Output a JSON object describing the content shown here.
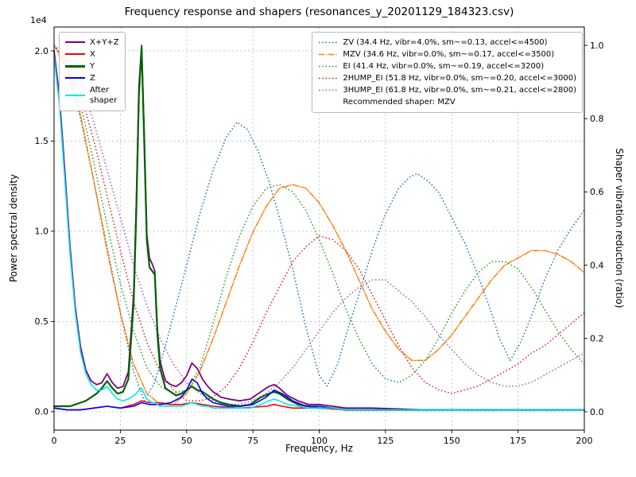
{
  "chart_data": {
    "type": "line",
    "title": "Frequency response and shapers (resonances_y_20201129_184323.csv)",
    "xlabel": "Frequency, Hz",
    "ylabel_left": "Power spectral density",
    "ylabel_right": "Shaper vibration reduction (ratio)",
    "offset_text": "1e4",
    "grid": true,
    "x_range": [
      0,
      200
    ],
    "y_left_range": [
      -0.102,
      2.132
    ],
    "y_right_range": [
      -0.05,
      1.05
    ],
    "x_ticks": {
      "values": [
        0,
        25,
        50,
        75,
        100,
        125,
        150,
        175,
        200
      ],
      "labels": [
        "0",
        "25",
        "50",
        "75",
        "100",
        "125",
        "150",
        "175",
        "200"
      ]
    },
    "y_left_ticks": {
      "values": [
        0,
        0.5,
        1.0,
        1.5,
        2.0
      ],
      "labels": [
        "0.0",
        "0.5",
        "1.0",
        "1.5",
        "2.0"
      ]
    },
    "y_right_ticks": {
      "values": [
        0,
        0.2,
        0.4,
        0.6,
        0.8,
        1.0
      ],
      "labels": [
        "0.0",
        "0.2",
        "0.4",
        "0.6",
        "0.8",
        "1.0"
      ]
    },
    "psd_units": "1e4",
    "psd_series": [
      {
        "name": "sum",
        "label": "X+Y+Z",
        "color": "#800080",
        "style": "solid",
        "width": 1.8,
        "x": [
          0,
          2,
          4,
          6,
          8,
          10,
          12,
          14,
          16,
          18,
          20,
          22,
          24,
          26,
          28,
          30,
          31,
          32,
          33,
          34,
          35,
          36,
          37,
          38,
          39,
          40,
          42,
          44,
          46,
          48,
          50,
          52,
          54,
          56,
          58,
          60,
          63,
          66,
          70,
          74,
          78,
          81,
          83,
          85,
          88,
          92,
          96,
          100,
          105,
          110,
          120,
          140,
          160,
          180,
          200
        ],
        "y": [
          2.0,
          1.75,
          1.35,
          0.92,
          0.58,
          0.36,
          0.23,
          0.17,
          0.15,
          0.16,
          0.21,
          0.16,
          0.13,
          0.14,
          0.22,
          0.65,
          1.15,
          1.8,
          2.03,
          1.55,
          0.98,
          0.85,
          0.82,
          0.78,
          0.45,
          0.28,
          0.17,
          0.15,
          0.14,
          0.16,
          0.2,
          0.27,
          0.24,
          0.18,
          0.14,
          0.11,
          0.08,
          0.07,
          0.06,
          0.07,
          0.11,
          0.14,
          0.15,
          0.13,
          0.09,
          0.06,
          0.04,
          0.04,
          0.03,
          0.02,
          0.02,
          0.01,
          0.01,
          0.01,
          0.01
        ]
      },
      {
        "name": "x",
        "label": "X",
        "color": "#ff0000",
        "style": "solid",
        "width": 1.6,
        "x": [
          0,
          5,
          10,
          15,
          20,
          25,
          30,
          33,
          36,
          40,
          44,
          48,
          52,
          56,
          60,
          70,
          80,
          83,
          86,
          90,
          100,
          110,
          130,
          160,
          200
        ],
        "y": [
          0.02,
          0.01,
          0.01,
          0.02,
          0.03,
          0.02,
          0.04,
          0.06,
          0.05,
          0.05,
          0.04,
          0.04,
          0.05,
          0.04,
          0.03,
          0.02,
          0.03,
          0.04,
          0.03,
          0.02,
          0.02,
          0.01,
          0.01,
          0.01,
          0.01
        ]
      },
      {
        "name": "y",
        "label": "Y",
        "color": "#006400",
        "style": "solid",
        "width": 2.2,
        "x": [
          0,
          2,
          4,
          6,
          8,
          10,
          12,
          14,
          16,
          18,
          20,
          22,
          24,
          26,
          28,
          30,
          31,
          32,
          33,
          34,
          35,
          36,
          37,
          38,
          39,
          40,
          42,
          44,
          46,
          48,
          50,
          52,
          54,
          56,
          58,
          60,
          63,
          66,
          70,
          74,
          78,
          81,
          83,
          85,
          88,
          92,
          96,
          100,
          105,
          110,
          120,
          140,
          160,
          180,
          200
        ],
        "y": [
          0.03,
          0.03,
          0.03,
          0.03,
          0.04,
          0.05,
          0.06,
          0.08,
          0.1,
          0.13,
          0.17,
          0.13,
          0.1,
          0.11,
          0.18,
          0.6,
          1.1,
          1.75,
          2.02,
          1.5,
          0.95,
          0.8,
          0.78,
          0.76,
          0.42,
          0.24,
          0.13,
          0.11,
          0.09,
          0.1,
          0.12,
          0.14,
          0.12,
          0.11,
          0.09,
          0.07,
          0.05,
          0.04,
          0.03,
          0.04,
          0.08,
          0.1,
          0.11,
          0.1,
          0.07,
          0.04,
          0.03,
          0.02,
          0.02,
          0.01,
          0.01,
          0.01,
          0.01,
          0.01,
          0.01
        ]
      },
      {
        "name": "z",
        "label": "Z",
        "color": "#0000ff",
        "style": "solid",
        "width": 1.6,
        "x": [
          0,
          5,
          10,
          15,
          20,
          25,
          30,
          33,
          36,
          40,
          44,
          48,
          50,
          52,
          54,
          56,
          58,
          60,
          63,
          66,
          70,
          75,
          80,
          83,
          86,
          90,
          95,
          100,
          105,
          110,
          130,
          160,
          200
        ],
        "y": [
          0.02,
          0.01,
          0.01,
          0.02,
          0.03,
          0.02,
          0.03,
          0.05,
          0.04,
          0.04,
          0.05,
          0.08,
          0.12,
          0.18,
          0.16,
          0.1,
          0.07,
          0.05,
          0.04,
          0.03,
          0.03,
          0.04,
          0.08,
          0.12,
          0.1,
          0.06,
          0.03,
          0.03,
          0.02,
          0.01,
          0.01,
          0.01,
          0.01
        ]
      },
      {
        "name": "after_shaper",
        "label": "After\nshaper",
        "color": "#00e5ee",
        "style": "solid",
        "width": 1.6,
        "x": [
          0,
          2,
          4,
          6,
          8,
          10,
          12,
          14,
          16,
          18,
          20,
          22,
          24,
          26,
          28,
          30,
          31,
          32,
          33,
          34,
          35,
          36,
          37,
          38,
          39,
          40,
          42,
          44,
          46,
          48,
          50,
          52,
          54,
          56,
          58,
          60,
          63,
          66,
          70,
          74,
          78,
          81,
          83,
          85,
          88,
          92,
          96,
          100,
          105,
          110,
          120,
          140,
          160,
          180,
          200
        ],
        "y": [
          1.97,
          1.7,
          1.3,
          0.88,
          0.55,
          0.33,
          0.21,
          0.15,
          0.12,
          0.12,
          0.14,
          0.1,
          0.07,
          0.06,
          0.07,
          0.09,
          0.1,
          0.12,
          0.13,
          0.1,
          0.07,
          0.06,
          0.05,
          0.05,
          0.04,
          0.03,
          0.03,
          0.03,
          0.03,
          0.03,
          0.04,
          0.05,
          0.04,
          0.03,
          0.03,
          0.02,
          0.02,
          0.02,
          0.02,
          0.02,
          0.04,
          0.06,
          0.07,
          0.06,
          0.04,
          0.03,
          0.02,
          0.02,
          0.02,
          0.01,
          0.01,
          0.01,
          0.01,
          0.01,
          0.01
        ]
      }
    ],
    "shaper_series": [
      {
        "name": "ZV",
        "label": "ZV (34.4 Hz, vibr=4.0%, sm~=0.13, accel<=4500)",
        "color": "#1f77b4",
        "style": "dotted",
        "width": 1.5,
        "x": [
          0,
          5,
          10,
          15,
          20,
          25,
          30,
          34,
          38,
          42,
          46,
          50,
          55,
          60,
          65,
          69,
          73,
          77,
          81,
          85,
          90,
          95,
          100,
          103,
          107,
          111,
          115,
          120,
          125,
          130,
          134,
          137,
          141,
          145,
          150,
          155,
          160,
          165,
          168,
          172,
          176,
          180,
          185,
          190,
          195,
          200
        ],
        "y": [
          1.0,
          0.93,
          0.8,
          0.63,
          0.45,
          0.27,
          0.11,
          0.03,
          0.08,
          0.18,
          0.29,
          0.4,
          0.54,
          0.66,
          0.75,
          0.79,
          0.77,
          0.71,
          0.63,
          0.53,
          0.39,
          0.23,
          0.1,
          0.07,
          0.13,
          0.23,
          0.32,
          0.44,
          0.54,
          0.61,
          0.64,
          0.65,
          0.63,
          0.6,
          0.53,
          0.46,
          0.37,
          0.27,
          0.2,
          0.14,
          0.19,
          0.26,
          0.36,
          0.44,
          0.5,
          0.55
        ]
      },
      {
        "name": "MZV",
        "label": "MZV (34.6 Hz, vibr=0.0%, sm~=0.17, accel<=3500)",
        "color": "#ff7f0e",
        "style": "dashdot",
        "width": 1.5,
        "x": [
          0,
          5,
          10,
          15,
          20,
          25,
          30,
          35,
          40,
          45,
          50,
          55,
          60,
          65,
          70,
          75,
          80,
          85,
          90,
          95,
          100,
          105,
          110,
          115,
          120,
          125,
          130,
          135,
          140,
          145,
          150,
          155,
          160,
          165,
          170,
          175,
          180,
          185,
          190,
          195,
          200
        ],
        "y": [
          1.0,
          0.94,
          0.81,
          0.63,
          0.44,
          0.27,
          0.13,
          0.05,
          0.02,
          0.02,
          0.05,
          0.11,
          0.2,
          0.3,
          0.4,
          0.49,
          0.56,
          0.61,
          0.62,
          0.61,
          0.57,
          0.51,
          0.44,
          0.36,
          0.28,
          0.22,
          0.17,
          0.14,
          0.14,
          0.17,
          0.21,
          0.26,
          0.31,
          0.36,
          0.4,
          0.42,
          0.44,
          0.44,
          0.43,
          0.41,
          0.38
        ]
      },
      {
        "name": "EI",
        "label": "EI (41.4 Hz, vibr=0.0%, sm~=0.19, accel<=3200)",
        "color": "#2ca02c",
        "style": "dotted",
        "width": 1.5,
        "x": [
          0,
          5,
          10,
          15,
          20,
          25,
          30,
          35,
          40,
          45,
          50,
          55,
          60,
          65,
          70,
          75,
          80,
          85,
          90,
          95,
          100,
          105,
          110,
          115,
          120,
          125,
          130,
          135,
          140,
          145,
          150,
          155,
          160,
          165,
          170,
          175,
          180,
          185,
          190,
          195,
          200
        ],
        "y": [
          1.0,
          0.95,
          0.84,
          0.68,
          0.51,
          0.35,
          0.22,
          0.12,
          0.07,
          0.05,
          0.06,
          0.12,
          0.24,
          0.37,
          0.48,
          0.56,
          0.61,
          0.62,
          0.6,
          0.55,
          0.47,
          0.38,
          0.28,
          0.2,
          0.13,
          0.09,
          0.08,
          0.1,
          0.14,
          0.2,
          0.27,
          0.33,
          0.38,
          0.41,
          0.41,
          0.39,
          0.34,
          0.28,
          0.22,
          0.17,
          0.13
        ]
      },
      {
        "name": "2HUMP_EI",
        "label": "2HUMP_EI (51.8 Hz, vibr=0.0%, sm~=0.20, accel<=3000)",
        "color": "#d62728",
        "style": "dotted",
        "width": 1.5,
        "x": [
          0,
          5,
          10,
          15,
          20,
          25,
          30,
          35,
          40,
          45,
          50,
          55,
          60,
          65,
          70,
          75,
          80,
          85,
          90,
          95,
          100,
          105,
          110,
          115,
          120,
          125,
          130,
          135,
          140,
          145,
          150,
          155,
          160,
          165,
          170,
          175,
          180,
          185,
          190,
          195,
          200
        ],
        "y": [
          1.0,
          0.96,
          0.87,
          0.74,
          0.59,
          0.44,
          0.3,
          0.19,
          0.11,
          0.06,
          0.03,
          0.03,
          0.04,
          0.07,
          0.12,
          0.19,
          0.27,
          0.34,
          0.41,
          0.45,
          0.48,
          0.47,
          0.44,
          0.39,
          0.32,
          0.25,
          0.18,
          0.12,
          0.08,
          0.06,
          0.05,
          0.06,
          0.07,
          0.09,
          0.11,
          0.13,
          0.16,
          0.18,
          0.21,
          0.24,
          0.27
        ]
      },
      {
        "name": "3HUMP_EI",
        "label": "3HUMP_EI (61.8 Hz, vibr=0.0%, sm~=0.21, accel<=2800)",
        "color": "#9467bd",
        "style": "dotted",
        "width": 1.5,
        "x": [
          0,
          5,
          10,
          15,
          20,
          25,
          30,
          35,
          40,
          45,
          50,
          55,
          60,
          65,
          70,
          75,
          80,
          85,
          90,
          95,
          100,
          105,
          110,
          115,
          120,
          125,
          130,
          135,
          140,
          145,
          150,
          155,
          160,
          165,
          170,
          175,
          180,
          185,
          190,
          195,
          200
        ],
        "y": [
          1.0,
          0.97,
          0.9,
          0.79,
          0.66,
          0.53,
          0.4,
          0.29,
          0.2,
          0.13,
          0.08,
          0.05,
          0.03,
          0.02,
          0.02,
          0.03,
          0.05,
          0.08,
          0.12,
          0.17,
          0.22,
          0.27,
          0.31,
          0.34,
          0.36,
          0.36,
          0.33,
          0.3,
          0.26,
          0.21,
          0.17,
          0.13,
          0.1,
          0.08,
          0.07,
          0.07,
          0.08,
          0.1,
          0.12,
          0.14,
          0.16
        ]
      }
    ],
    "legend_note": "Recommended shaper: MZV"
  }
}
